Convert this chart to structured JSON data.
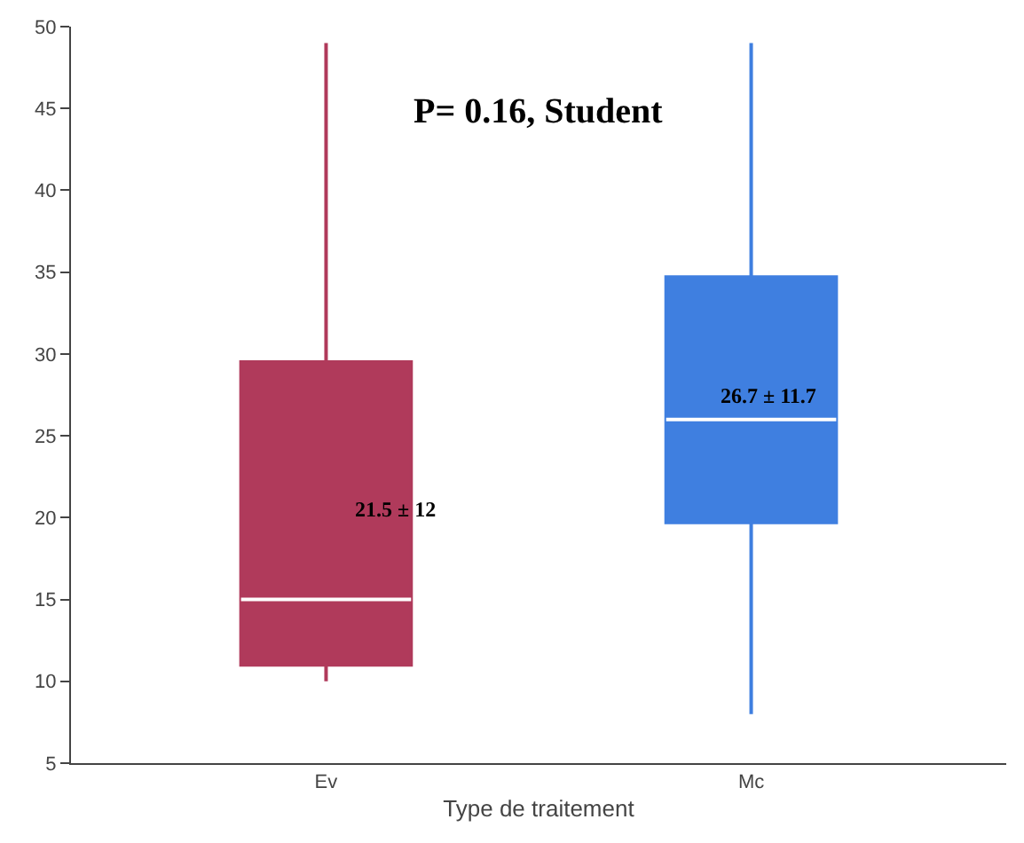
{
  "chart_data": {
    "type": "box",
    "xlabel": "Type de traitement",
    "categories": [
      "Ev",
      "Mc"
    ],
    "series": [
      {
        "color": "#b03a5b",
        "boxes": [
          {
            "low": 10,
            "q1": 11,
            "median": 15,
            "q3": 29.5,
            "high": 49
          },
          null
        ]
      },
      {
        "color": "#3f7fe0",
        "boxes": [
          null,
          {
            "low": 8,
            "q1": 19.7,
            "median": 26,
            "q3": 34.7,
            "high": 49
          }
        ]
      }
    ],
    "ylim": [
      5,
      50
    ],
    "yticks": [
      5,
      10,
      15,
      20,
      25,
      30,
      35,
      40,
      45,
      50
    ],
    "legend": false,
    "annotations": [
      "21.5 ± 12",
      "26.7 ± 11.7",
      "P= 0.16, Student"
    ]
  }
}
